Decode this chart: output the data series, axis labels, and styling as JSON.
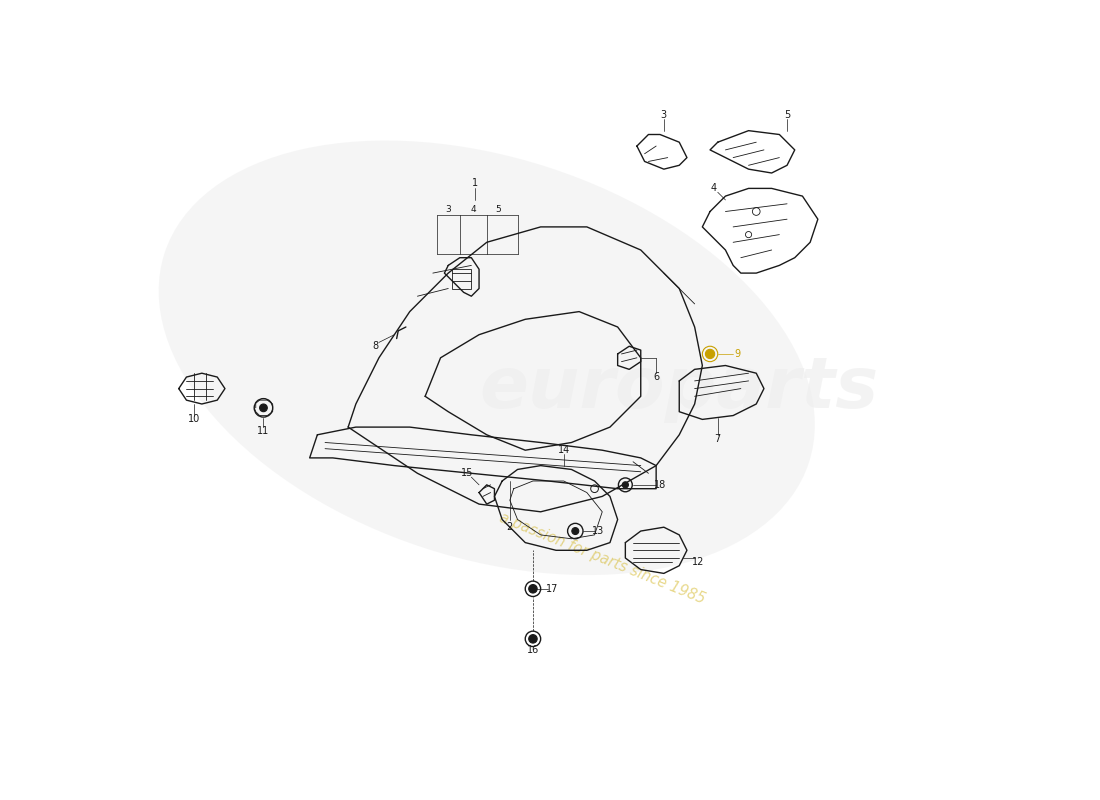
{
  "background_color": "#ffffff",
  "line_color": "#1a1a1a",
  "watermark_text": "a passion for parts since 1985",
  "watermark_color": "#ccaa00",
  "watermark_alpha": 0.45,
  "logo_text": "europarts",
  "logo_color": "#cccccc",
  "logo_alpha": 0.22,
  "figsize": [
    11.0,
    8.0
  ],
  "dpi": 100,
  "xlim": [
    0,
    110
  ],
  "ylim": [
    0,
    80
  ]
}
